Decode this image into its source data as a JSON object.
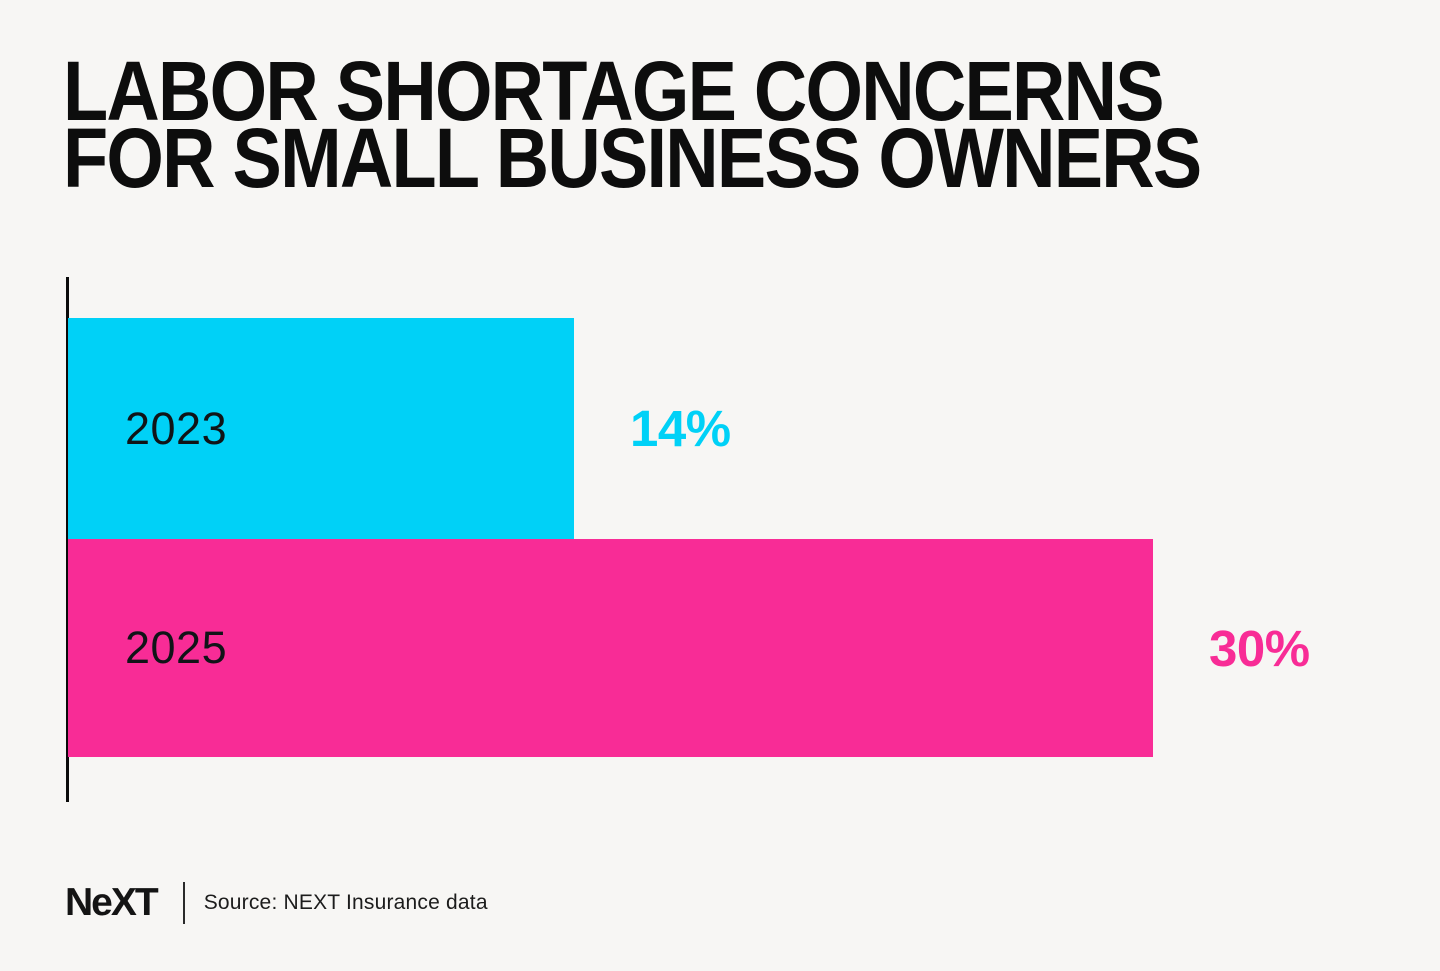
{
  "page": {
    "background": "#F7F6F4"
  },
  "title": {
    "line1": "LABOR SHORTAGE CONCERNS",
    "line2": "FOR SMALL BUSINESS OWNERS"
  },
  "chart_data": {
    "type": "bar",
    "orientation": "horizontal",
    "title": "LABOR SHORTAGE CONCERNS FOR SMALL BUSINESS OWNERS",
    "categories": [
      "2023",
      "2025"
    ],
    "values": [
      14,
      30
    ],
    "value_labels": [
      "14%",
      "30%"
    ],
    "series_colors": [
      "#00D1F7",
      "#F82C96"
    ],
    "xlim": [
      0,
      30
    ],
    "xlabel": "",
    "ylabel": "",
    "grid": false,
    "legend": false,
    "axis_color": "#0B0B0B",
    "category_label_color": "#101417",
    "value_label_placement": "outside-end"
  },
  "footer": {
    "logo_text": "NeXT",
    "source": "Source: NEXT Insurance data"
  }
}
